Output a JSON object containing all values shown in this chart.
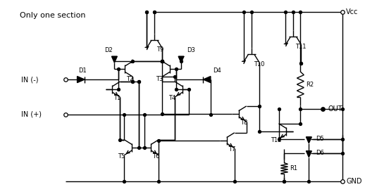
{
  "bg_color": "#ffffff",
  "line_color": "#000000",
  "font_size": 7,
  "label_only_one": "Only one section",
  "label_vcc": "Vcc",
  "label_gnd": "GND",
  "label_out": "OUT",
  "label_in_neg": "IN (-)",
  "label_in_pos": "IN (+)",
  "labels": {
    "T1": "T1",
    "T2": "T2",
    "T3": "T3",
    "T4": "T4",
    "T5": "T5",
    "T6": "T6",
    "T7": "T7",
    "T8": "T8",
    "T9": "T9",
    "T10": "T10",
    "T11": "T11",
    "T12": "T12",
    "D1": "D1",
    "D2": "D2",
    "D3": "D3",
    "D4": "D4",
    "D5": "D5",
    "D6": "D6",
    "R1": "R1",
    "R2": "R2"
  }
}
